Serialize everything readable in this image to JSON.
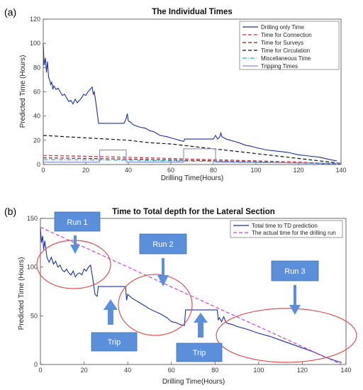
{
  "chart_data": [
    {
      "panel": "(a)",
      "type": "line",
      "title": "The Individual Times",
      "xlabel": "Drilling Time(Hours)",
      "ylabel": "Predicted Time (Hours)",
      "xlim": [
        0,
        140
      ],
      "ylim": [
        0,
        120
      ],
      "xticks": [
        0,
        20,
        40,
        60,
        80,
        100,
        120,
        140
      ],
      "yticks": [
        0,
        20,
        40,
        60,
        80,
        100,
        120
      ],
      "legend_position": "top-right",
      "series": [
        {
          "name": "Drilling only Time",
          "color": "#1a2fa8",
          "style": "solid",
          "x": [
            0,
            0.4,
            1,
            1.5,
            2,
            2.5,
            3,
            3.5,
            4,
            4.5,
            5,
            6,
            7,
            8,
            9,
            10,
            11,
            12,
            13,
            14,
            15,
            16,
            17,
            18,
            19,
            20,
            21,
            22,
            23,
            23.5,
            24,
            25,
            26,
            30,
            35,
            38,
            39,
            39.5,
            40,
            41,
            42,
            45,
            48,
            50,
            52,
            55,
            58,
            60,
            62,
            64,
            66,
            66.5,
            70,
            75,
            80,
            81,
            82,
            83,
            83.5,
            84,
            85,
            86,
            88,
            90,
            92,
            95,
            98,
            100,
            105,
            110,
            115,
            120,
            125,
            130,
            135,
            138
          ],
          "y": [
            100,
            82,
            88,
            76,
            85,
            72,
            70,
            66,
            68,
            62,
            65,
            62,
            63,
            60,
            57,
            58,
            55,
            52,
            53,
            50,
            54,
            51,
            53,
            55,
            58,
            57,
            60,
            62,
            64,
            58,
            60,
            48,
            34,
            34,
            34,
            34,
            38,
            42,
            36,
            35,
            33,
            31,
            30,
            28,
            27,
            24,
            23,
            22,
            21,
            20,
            19,
            21,
            21,
            21,
            21,
            24,
            21,
            23,
            26,
            23,
            22,
            21,
            20,
            19,
            18,
            16,
            15,
            14,
            12,
            11,
            10,
            8,
            7,
            6,
            4,
            3
          ]
        },
        {
          "name": "Time for Connection",
          "color": "#d9263b",
          "style": "dashed",
          "x": [
            0,
            20,
            40,
            60,
            80,
            100,
            120,
            140
          ],
          "y": [
            7.5,
            6.8,
            6,
            5,
            4,
            3,
            2,
            0.5
          ]
        },
        {
          "name": "Time for Surveys",
          "color": "#8b1a1a",
          "style": "dashed",
          "x": [
            0,
            20,
            40,
            60,
            80,
            100,
            120,
            140
          ],
          "y": [
            5.5,
            5,
            4.5,
            3.8,
            3,
            2.2,
            1.3,
            0.3
          ]
        },
        {
          "name": "Time for Circulation",
          "color": "#111111",
          "style": "dashed",
          "x": [
            0,
            10,
            20,
            30,
            40,
            50,
            60,
            70,
            80,
            90,
            100,
            110,
            120,
            130,
            140
          ],
          "y": [
            24,
            23,
            22,
            21,
            20,
            18,
            17,
            15,
            13,
            11,
            9,
            7,
            5,
            3,
            1
          ]
        },
        {
          "name": "Miscellaneous Time",
          "color": "#1fb5c9",
          "style": "dashdot",
          "x": [
            0,
            20,
            40,
            60,
            80,
            100,
            120,
            140
          ],
          "y": [
            4,
            3.8,
            3.5,
            3,
            2.5,
            2,
            1.3,
            0.5
          ]
        },
        {
          "name": "Tripping Times",
          "color": "#8a8fd6",
          "style": "solid",
          "x": [
            0,
            26.5,
            26.5,
            39,
            39,
            66,
            66,
            81,
            81,
            140
          ],
          "y": [
            2,
            2,
            12,
            12,
            2,
            2,
            13,
            13,
            2,
            1
          ]
        }
      ]
    },
    {
      "panel": "(b)",
      "type": "line",
      "title": "Time to Total depth for the Lateral Section",
      "xlabel": "Drilling Time(Hours)",
      "ylabel": "Predicted Time (Hours)",
      "xlim": [
        0,
        140
      ],
      "ylim": [
        0,
        150
      ],
      "xticks": [
        0,
        20,
        40,
        60,
        80,
        100,
        120,
        140
      ],
      "yticks": [
        0,
        50,
        100,
        150
      ],
      "legend_position": "top-right",
      "series": [
        {
          "name": "Total time to TD prediction",
          "color": "#1a2fa8",
          "style": "solid",
          "x": [
            0,
            0.5,
            1,
            1.5,
            2,
            3,
            4,
            5,
            6,
            7,
            8,
            9,
            10,
            11,
            12,
            13,
            14,
            15,
            16,
            17,
            18,
            19,
            20,
            21,
            22,
            23,
            24,
            25,
            26,
            26.5,
            39,
            39.5,
            40,
            42,
            45,
            48,
            50,
            55,
            58,
            60,
            62,
            64,
            66,
            66.5,
            81,
            81.5,
            82,
            83,
            84,
            85,
            86,
            88,
            90,
            95,
            100,
            105,
            110,
            115,
            120,
            125,
            130,
            135,
            138
          ],
          "y": [
            140,
            125,
            132,
            118,
            127,
            110,
            105,
            110,
            103,
            106,
            100,
            102,
            97,
            95,
            98,
            94,
            92,
            96,
            90,
            93,
            94,
            92,
            98,
            96,
            100,
            102,
            88,
            72,
            70,
            80,
            80,
            66,
            72,
            68,
            64,
            60,
            57,
            52,
            48,
            44,
            43,
            41,
            40,
            56,
            56,
            46,
            48,
            44,
            49,
            43,
            42,
            41,
            39,
            36,
            32,
            29,
            25,
            21,
            17,
            13,
            8,
            4,
            2
          ]
        },
        {
          "name": "The actual time for the drilling run",
          "color": "#d23fe0",
          "style": "dashed",
          "x": [
            0,
            138
          ],
          "y": [
            141,
            0
          ]
        }
      ],
      "annotations": [
        {
          "label": "Run 1",
          "type": "callout"
        },
        {
          "label": "Run 2",
          "type": "callout"
        },
        {
          "label": "Run 3",
          "type": "callout"
        },
        {
          "label": "Trip",
          "type": "callout"
        },
        {
          "label": "Trip",
          "type": "callout"
        }
      ]
    }
  ]
}
